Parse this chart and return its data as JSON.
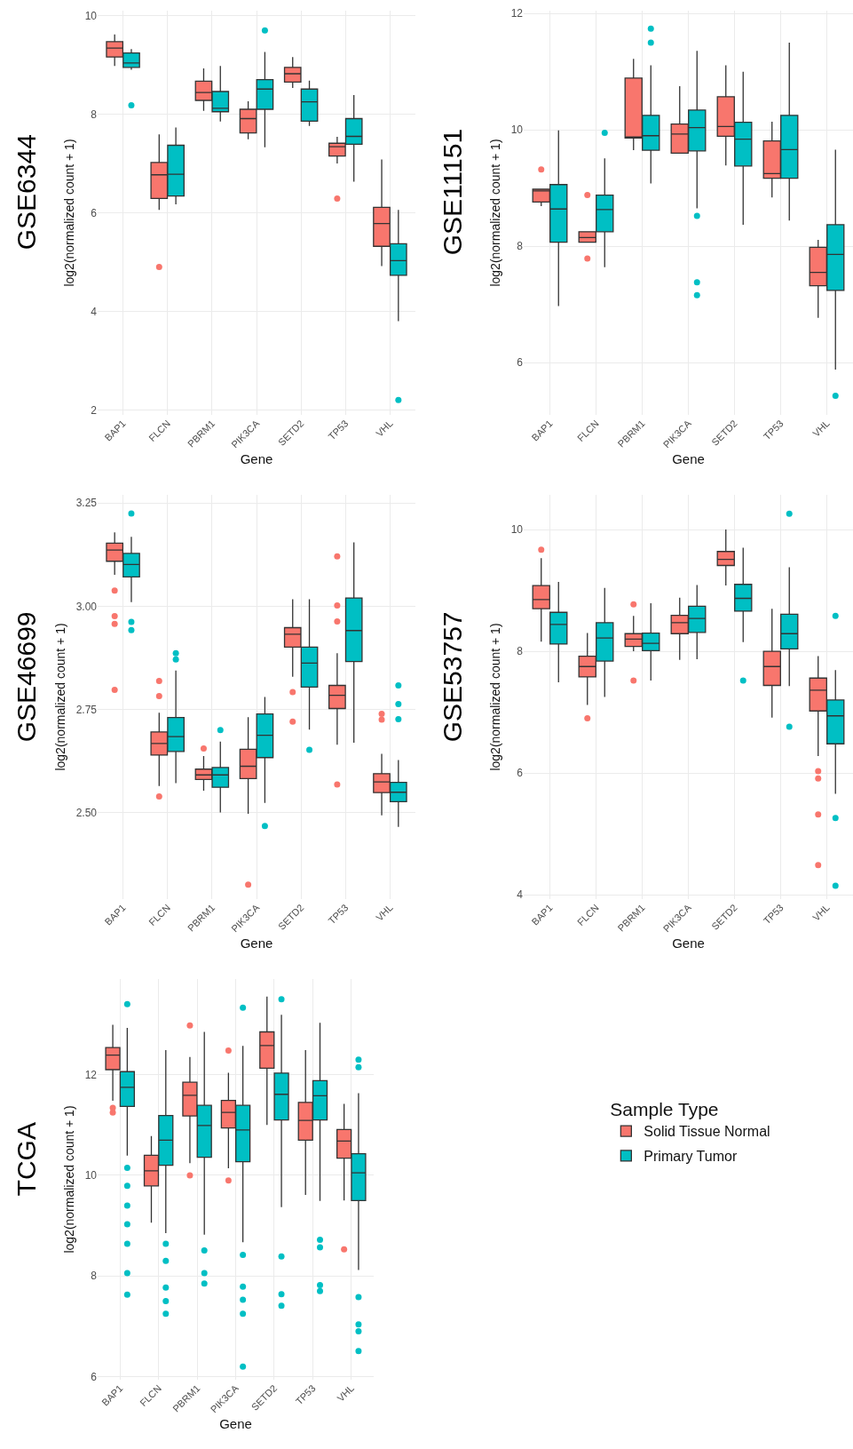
{
  "chart_data": [
    {
      "type": "box",
      "title": "GSE6344",
      "xlabel": "Gene",
      "ylabel": "log2(normalized count + 1)",
      "categories": [
        "BAP1",
        "FLCN",
        "PBRM1",
        "PIK3CA",
        "SETD2",
        "TP53",
        "VHL"
      ],
      "ylim": [
        1.9,
        10.1
      ],
      "yticks": [
        2,
        4,
        6,
        8,
        10
      ],
      "grid": true,
      "legend": false,
      "series": [
        {
          "color": "#f8766d",
          "boxes": [
            {
              "low": 8.98,
              "q1": 9.16,
              "median": 9.34,
              "q3": 9.47,
              "high": 9.62
            },
            {
              "low": 6.06,
              "q1": 6.29,
              "median": 6.77,
              "q3": 7.02,
              "high": 7.59,
              "outliers": [
                4.9
              ]
            },
            {
              "low": 8.07,
              "q1": 8.28,
              "median": 8.44,
              "q3": 8.67,
              "high": 8.93
            },
            {
              "low": 7.49,
              "q1": 7.62,
              "median": 7.91,
              "q3": 8.1,
              "high": 8.26
            },
            {
              "low": 8.53,
              "q1": 8.65,
              "median": 8.82,
              "q3": 8.95,
              "high": 9.16
            },
            {
              "low": 7.0,
              "q1": 7.15,
              "median": 7.34,
              "q3": 7.41,
              "high": 7.54,
              "outliers": [
                6.29
              ]
            },
            {
              "low": 4.92,
              "q1": 5.32,
              "median": 5.78,
              "q3": 6.11,
              "high": 7.08
            }
          ]
        },
        {
          "color": "#00bfc4",
          "boxes": [
            {
              "low": 8.9,
              "q1": 8.95,
              "median": 9.04,
              "q3": 9.24,
              "high": 9.32,
              "outliers": [
                8.18
              ]
            },
            {
              "low": 6.17,
              "q1": 6.34,
              "median": 6.78,
              "q3": 7.37,
              "high": 7.73
            },
            {
              "low": 7.85,
              "q1": 8.05,
              "median": 8.12,
              "q3": 8.46,
              "high": 8.98
            },
            {
              "low": 7.33,
              "q1": 8.1,
              "median": 8.51,
              "q3": 8.7,
              "high": 9.26,
              "outliers": [
                9.7
              ]
            },
            {
              "low": 7.76,
              "q1": 7.86,
              "median": 8.25,
              "q3": 8.51,
              "high": 8.68
            },
            {
              "low": 6.63,
              "q1": 7.39,
              "median": 7.55,
              "q3": 7.91,
              "high": 8.39
            },
            {
              "low": 3.8,
              "q1": 4.73,
              "median": 5.03,
              "q3": 5.37,
              "high": 6.06,
              "outliers": [
                2.2
              ]
            }
          ]
        }
      ]
    },
    {
      "type": "box",
      "title": "GSE11151",
      "xlabel": "Gene",
      "ylabel": "log2(normalized count + 1)",
      "categories": [
        "BAP1",
        "FLCN",
        "PBRM1",
        "PIK3CA",
        "SETD2",
        "TP53",
        "VHL"
      ],
      "ylim": [
        5.1,
        12.05
      ],
      "yticks": [
        6,
        8,
        10,
        12
      ],
      "grid": true,
      "legend": false,
      "series": [
        {
          "color": "#f8766d",
          "boxes": [
            {
              "low": 8.69,
              "q1": 8.76,
              "median": 8.95,
              "q3": 8.98,
              "high": 8.98,
              "outliers": [
                9.32
              ]
            },
            {
              "low": 8.07,
              "q1": 8.07,
              "median": 8.15,
              "q3": 8.25,
              "high": 8.25,
              "outliers": [
                8.88,
                7.79
              ]
            },
            {
              "low": 9.65,
              "q1": 9.86,
              "median": 9.88,
              "q3": 10.89,
              "high": 11.22
            },
            {
              "low": 9.6,
              "q1": 9.6,
              "median": 9.93,
              "q3": 10.1,
              "high": 10.75
            },
            {
              "low": 9.39,
              "q1": 9.89,
              "median": 10.06,
              "q3": 10.57,
              "high": 11.11
            },
            {
              "low": 8.84,
              "q1": 9.17,
              "median": 9.25,
              "q3": 9.81,
              "high": 10.14
            },
            {
              "low": 6.77,
              "q1": 7.32,
              "median": 7.55,
              "q3": 7.98,
              "high": 8.11
            }
          ]
        },
        {
          "color": "#00bfc4",
          "boxes": [
            {
              "low": 6.97,
              "q1": 8.07,
              "median": 8.64,
              "q3": 9.06,
              "high": 9.99
            },
            {
              "low": 7.64,
              "q1": 8.25,
              "median": 8.63,
              "q3": 8.88,
              "high": 9.51,
              "outliers": [
                9.95
              ]
            },
            {
              "low": 9.08,
              "q1": 9.65,
              "median": 9.9,
              "q3": 10.25,
              "high": 11.11,
              "outliers": [
                11.74,
                11.5
              ]
            },
            {
              "low": 8.65,
              "q1": 9.64,
              "median": 10.04,
              "q3": 10.34,
              "high": 11.36,
              "outliers": [
                8.52,
                7.38,
                7.16
              ]
            },
            {
              "low": 8.37,
              "q1": 9.38,
              "median": 9.84,
              "q3": 10.13,
              "high": 11.0
            },
            {
              "low": 8.44,
              "q1": 9.17,
              "median": 9.66,
              "q3": 10.25,
              "high": 11.5
            },
            {
              "low": 5.88,
              "q1": 7.24,
              "median": 7.86,
              "q3": 8.37,
              "high": 9.66,
              "outliers": [
                5.43
              ]
            }
          ]
        }
      ]
    },
    {
      "type": "box",
      "title": "GSE46699",
      "xlabel": "Gene",
      "ylabel": "log2(normalized count + 1)",
      "categories": [
        "BAP1",
        "FLCN",
        "PBRM1",
        "PIK3CA",
        "SETD2",
        "TP53",
        "VHL"
      ],
      "ylim": [
        2.29,
        3.27
      ],
      "yticks": [
        {
          "value": 2.5,
          "label": "2.50"
        },
        2.75,
        {
          "value": 3,
          "label": "3.00"
        },
        3.25
      ],
      "grid": true,
      "legend": false,
      "series": [
        {
          "color": "#f8766d",
          "boxes": [
            {
              "low": 3.076,
              "q1": 3.109,
              "median": 3.136,
              "q3": 3.153,
              "high": 3.179,
              "outliers": [
                3.038,
                2.976,
                2.957,
                2.797
              ]
            },
            {
              "low": 2.564,
              "q1": 2.639,
              "median": 2.667,
              "q3": 2.695,
              "high": 2.742,
              "outliers": [
                2.819,
                2.782,
                2.539
              ]
            },
            {
              "low": 2.553,
              "q1": 2.58,
              "median": 2.591,
              "q3": 2.605,
              "high": 2.637,
              "outliers": [
                2.655
              ]
            },
            {
              "low": 2.497,
              "q1": 2.582,
              "median": 2.612,
              "q3": 2.653,
              "high": 2.731,
              "outliers": [
                2.325
              ]
            },
            {
              "low": 2.829,
              "q1": 2.901,
              "median": 2.932,
              "q3": 2.948,
              "high": 3.017,
              "outliers": [
                2.792,
                2.72
              ]
            },
            {
              "low": 2.664,
              "q1": 2.752,
              "median": 2.784,
              "q3": 2.808,
              "high": 2.886,
              "outliers": [
                3.121,
                3.002,
                2.963,
                2.568
              ]
            },
            {
              "low": 2.493,
              "q1": 2.548,
              "median": 2.574,
              "q3": 2.594,
              "high": 2.642,
              "outliers": [
                2.739,
                2.725
              ]
            }
          ]
        },
        {
          "color": "#00bfc4",
          "boxes": [
            {
              "low": 3.01,
              "q1": 3.071,
              "median": 3.101,
              "q3": 3.128,
              "high": 3.168,
              "outliers": [
                3.225,
                2.962,
                2.942
              ]
            },
            {
              "low": 2.571,
              "q1": 2.648,
              "median": 2.684,
              "q3": 2.73,
              "high": 2.844,
              "outliers": [
                2.886,
                2.871
              ]
            },
            {
              "low": 2.5,
              "q1": 2.561,
              "median": 2.591,
              "q3": 2.609,
              "high": 2.672,
              "outliers": [
                2.7
              ]
            },
            {
              "low": 2.523,
              "q1": 2.633,
              "median": 2.687,
              "q3": 2.739,
              "high": 2.78,
              "outliers": [
                2.467
              ]
            },
            {
              "low": 2.701,
              "q1": 2.804,
              "median": 2.862,
              "q3": 2.901,
              "high": 3.017,
              "outliers": [
                2.652
              ]
            },
            {
              "low": 2.669,
              "q1": 2.866,
              "median": 2.941,
              "q3": 3.02,
              "high": 3.155
            },
            {
              "low": 2.465,
              "q1": 2.526,
              "median": 2.549,
              "q3": 2.573,
              "high": 2.627,
              "outliers": [
                2.808,
                2.763,
                2.726
              ]
            }
          ]
        }
      ]
    },
    {
      "type": "box",
      "title": "GSE53757",
      "xlabel": "Gene",
      "ylabel": "log2(normalized count + 1)",
      "categories": [
        "BAP1",
        "FLCN",
        "PBRM1",
        "PIK3CA",
        "SETD2",
        "TP53",
        "VHL"
      ],
      "ylim": [
        3.93,
        10.57
      ],
      "yticks": [
        4,
        6,
        8,
        10
      ],
      "grid": true,
      "legend": false,
      "series": [
        {
          "color": "#f8766d",
          "boxes": [
            {
              "low": 8.16,
              "q1": 8.7,
              "median": 8.85,
              "q3": 9.08,
              "high": 9.53,
              "outliers": [
                9.67
              ]
            },
            {
              "low": 7.12,
              "q1": 7.58,
              "median": 7.75,
              "q3": 7.92,
              "high": 8.3,
              "outliers": [
                6.9
              ]
            },
            {
              "low": 8.0,
              "q1": 8.08,
              "median": 8.2,
              "q3": 8.29,
              "high": 8.58,
              "outliers": [
                8.77,
                7.52
              ]
            },
            {
              "low": 7.86,
              "q1": 8.29,
              "median": 8.47,
              "q3": 8.59,
              "high": 8.88
            },
            {
              "low": 9.08,
              "q1": 9.41,
              "median": 9.51,
              "q3": 9.64,
              "high": 10.0
            },
            {
              "low": 6.91,
              "q1": 7.44,
              "median": 7.75,
              "q3": 8.0,
              "high": 8.7
            },
            {
              "low": 6.28,
              "q1": 7.02,
              "median": 7.36,
              "q3": 7.56,
              "high": 7.92,
              "outliers": [
                6.03,
                5.91,
                5.32,
                4.49
              ]
            }
          ]
        },
        {
          "color": "#00bfc4",
          "boxes": [
            {
              "low": 7.49,
              "q1": 8.12,
              "median": 8.44,
              "q3": 8.64,
              "high": 9.14
            },
            {
              "low": 7.25,
              "q1": 7.84,
              "median": 8.22,
              "q3": 8.47,
              "high": 9.04
            },
            {
              "low": 7.52,
              "q1": 8.01,
              "median": 8.13,
              "q3": 8.3,
              "high": 8.79
            },
            {
              "low": 7.87,
              "q1": 8.31,
              "median": 8.54,
              "q3": 8.74,
              "high": 9.09
            },
            {
              "low": 8.15,
              "q1": 8.66,
              "median": 8.87,
              "q3": 9.1,
              "high": 9.7,
              "outliers": [
                7.52
              ]
            },
            {
              "low": 7.43,
              "q1": 8.04,
              "median": 8.29,
              "q3": 8.61,
              "high": 9.38,
              "outliers": [
                10.26,
                6.76
              ]
            },
            {
              "low": 5.66,
              "q1": 6.48,
              "median": 6.94,
              "q3": 7.2,
              "high": 7.69,
              "outliers": [
                8.58,
                5.26,
                4.15
              ]
            }
          ]
        }
      ]
    },
    {
      "type": "box",
      "title": "TCGA",
      "xlabel": "Gene",
      "ylabel": "log2(normalized count + 1)",
      "categories": [
        "BAP1",
        "FLCN",
        "PBRM1",
        "PIK3CA",
        "SETD2",
        "TP53",
        "VHL"
      ],
      "ylim": [
        5.94,
        13.9
      ],
      "yticks": [
        6,
        8,
        10,
        12
      ],
      "grid": true,
      "legend": "right",
      "legend_title": "Sample Type",
      "series": [
        {
          "name": "Solid Tissue Normal",
          "color": "#f8766d",
          "boxes": [
            {
              "low": 11.48,
              "q1": 12.1,
              "median": 12.39,
              "q3": 12.54,
              "high": 12.99,
              "outliers": [
                11.34,
                11.25
              ]
            },
            {
              "low": 9.06,
              "q1": 9.79,
              "median": 10.09,
              "q3": 10.4,
              "high": 10.78
            },
            {
              "low": 10.24,
              "q1": 11.18,
              "median": 11.59,
              "q3": 11.85,
              "high": 12.35,
              "outliers": [
                12.98,
                10.0
              ]
            },
            {
              "low": 10.14,
              "q1": 10.94,
              "median": 11.25,
              "q3": 11.49,
              "high": 12.04,
              "outliers": [
                12.48,
                9.9
              ]
            },
            {
              "low": 11.0,
              "q1": 12.13,
              "median": 12.58,
              "q3": 12.85,
              "high": 13.55
            },
            {
              "low": 9.61,
              "q1": 10.7,
              "median": 11.09,
              "q3": 11.45,
              "high": 12.49
            },
            {
              "low": 9.5,
              "q1": 10.34,
              "median": 10.68,
              "q3": 10.91,
              "high": 11.42,
              "outliers": [
                8.53
              ]
            }
          ]
        },
        {
          "name": "Primary Tumor",
          "color": "#00bfc4",
          "boxes": [
            {
              "low": 10.39,
              "q1": 11.37,
              "median": 11.75,
              "q3": 12.06,
              "high": 12.93,
              "outliers": [
                13.4,
                10.15,
                9.79,
                9.4,
                9.03,
                8.64,
                8.06,
                7.63
              ]
            },
            {
              "low": 8.85,
              "q1": 10.2,
              "median": 10.7,
              "q3": 11.19,
              "high": 12.49,
              "outliers": [
                8.64,
                8.3,
                7.77,
                7.5,
                7.25
              ]
            },
            {
              "low": 8.82,
              "q1": 10.36,
              "median": 10.99,
              "q3": 11.39,
              "high": 12.85,
              "outliers": [
                8.51,
                8.06,
                7.85
              ]
            },
            {
              "low": 8.67,
              "q1": 10.27,
              "median": 10.9,
              "q3": 11.39,
              "high": 12.57,
              "outliers": [
                13.33,
                8.42,
                7.79,
                7.53,
                7.25,
                6.2
              ]
            },
            {
              "low": 9.37,
              "q1": 11.1,
              "median": 11.61,
              "q3": 12.03,
              "high": 13.19,
              "outliers": [
                13.5,
                8.39,
                7.64,
                7.41
              ]
            },
            {
              "low": 9.49,
              "q1": 11.1,
              "median": 11.58,
              "q3": 11.88,
              "high": 13.03,
              "outliers": [
                8.72,
                8.57,
                7.82,
                7.7
              ]
            },
            {
              "low": 8.12,
              "q1": 9.5,
              "median": 10.05,
              "q3": 10.43,
              "high": 11.63,
              "outliers": [
                12.3,
                12.15,
                7.58,
                7.04,
                6.9,
                6.51
              ]
            }
          ]
        }
      ]
    }
  ]
}
